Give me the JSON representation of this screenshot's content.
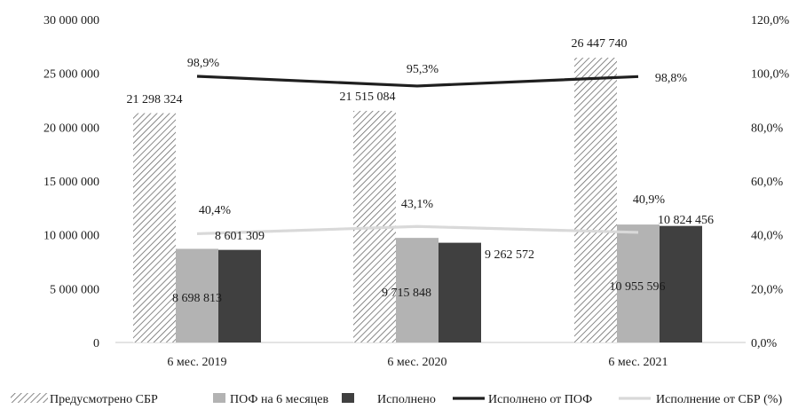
{
  "chart_data": {
    "type": "bar",
    "categories": [
      "6 мес. 2019",
      "6 мес. 2020",
      "6 мес. 2021"
    ],
    "series": [
      {
        "name": "Предусмотрено СБР",
        "kind": "bar",
        "axis": "left",
        "values": [
          21298324,
          21515084,
          26447740
        ],
        "labels": [
          "21 298 324",
          "21 515 084",
          "26 447 740"
        ],
        "fill": "hatch"
      },
      {
        "name": "ПОФ на 6 месяцев",
        "kind": "bar",
        "axis": "left",
        "values": [
          8698813,
          9715848,
          10955596
        ],
        "labels": [
          "8 698 813",
          "9 715 848",
          "10 955 596"
        ],
        "fill": "#b3b3b3"
      },
      {
        "name": "Исполнено",
        "kind": "bar",
        "axis": "left",
        "values": [
          8601309,
          9262572,
          10824456
        ],
        "labels": [
          "8 601 309",
          "9 262 572",
          "10 824 456"
        ],
        "fill": "#404040"
      },
      {
        "name": "Исполнено от ПОФ",
        "kind": "line",
        "axis": "right",
        "values": [
          0.989,
          0.953,
          0.988
        ],
        "labels": [
          "98,9%",
          "95,3%",
          "98,8%"
        ],
        "color": "#1f1f1f"
      },
      {
        "name": "Исполнение от СБР (%)",
        "kind": "line",
        "axis": "right",
        "values": [
          0.404,
          0.431,
          0.409
        ],
        "labels": [
          "40,4%",
          "43,1%",
          "40,9%"
        ],
        "color": "#d9d9d9"
      }
    ],
    "y_left": {
      "min": 0,
      "max": 30000000,
      "ticks": [
        "0",
        "5 000 000",
        "10 000 000",
        "15 000 000",
        "20 000 000",
        "25 000 000",
        "30 000 000"
      ]
    },
    "y_right": {
      "min": 0,
      "max": 1.2,
      "ticks": [
        "0,0%",
        "20,0%",
        "40,0%",
        "60,0%",
        "80,0%",
        "100,0%",
        "120,0%"
      ]
    },
    "grid": false,
    "legend_position": "bottom"
  }
}
